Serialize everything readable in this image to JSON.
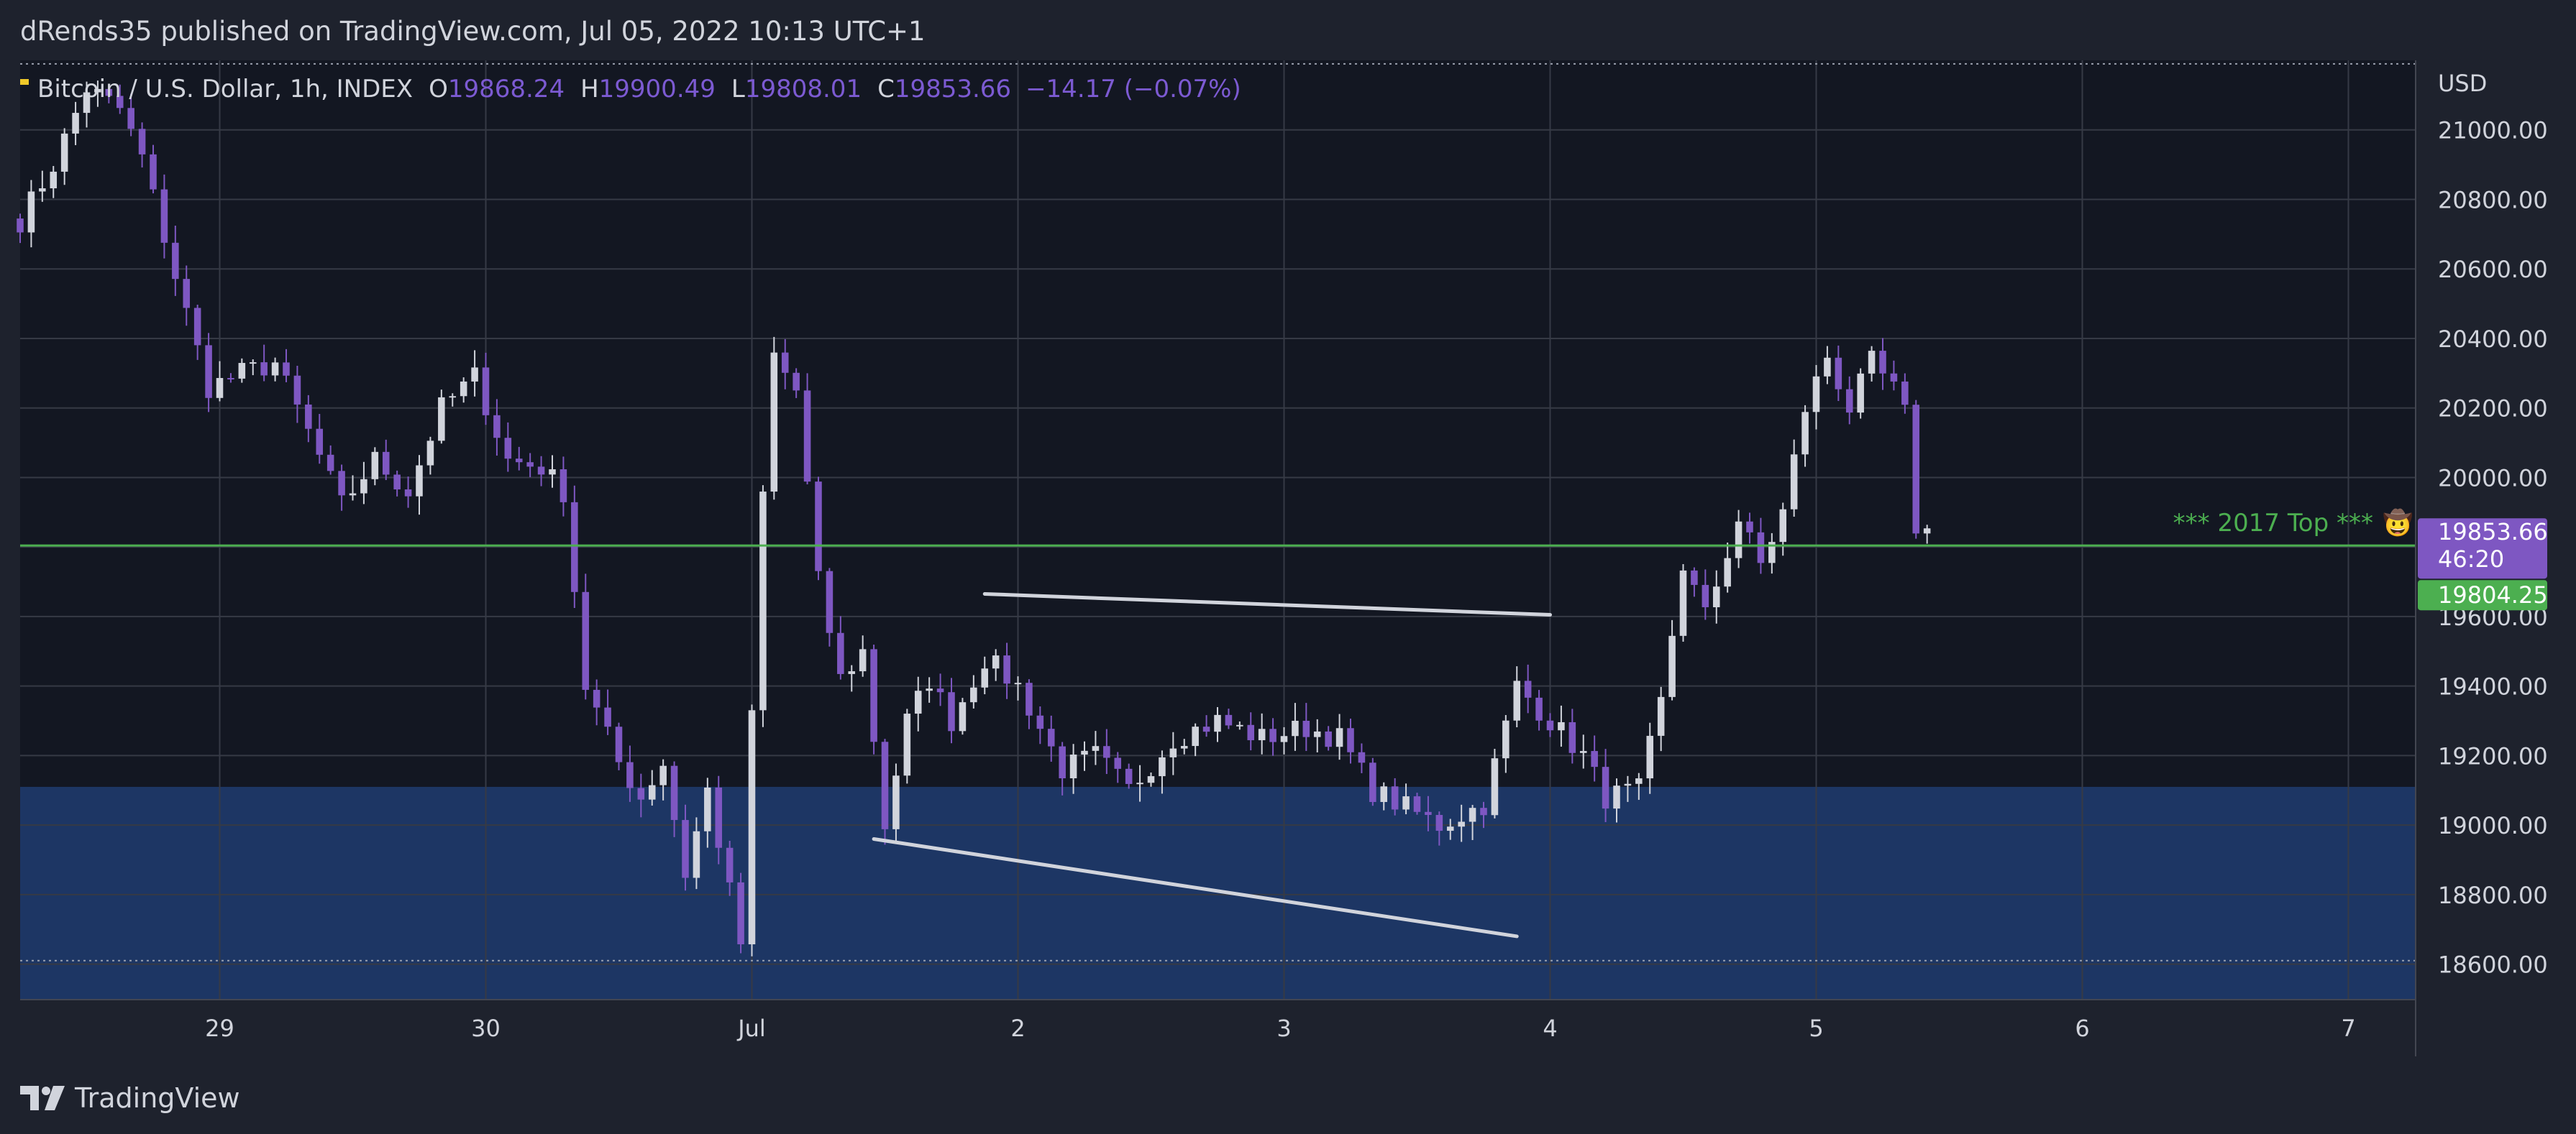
{
  "header": {
    "publish_line": "dRends35 published on TradingView.com, Jul 05, 2022 10:13 UTC+1"
  },
  "legend": {
    "title": "Bitcoin / U.S. Dollar, 1h, INDEX",
    "open_label": "O",
    "open": "19868.24",
    "high_label": "H",
    "high": "19900.49",
    "low_label": "L",
    "low": "19808.01",
    "close_label": "C",
    "close": "19853.66",
    "change": "−14.17 (−0.07%)"
  },
  "footer": {
    "brand": "TradingView"
  },
  "colors": {
    "background": "#131722",
    "frame": "#1e222d",
    "grid": "#363a45",
    "up_candle": "#d1d4dc",
    "down_candle": "#7e57c2",
    "zone": "#1f3a6b",
    "support_line": "#4caf50",
    "price_label": "#7e57c2",
    "level_label": "#4caf50",
    "trendline": "#d1d4dc"
  },
  "chart_data": {
    "type": "candlestick",
    "title": "Bitcoin / U.S. Dollar, 1h, INDEX",
    "currency": "USD",
    "timeframe": "1h",
    "y_range": [
      18500,
      21200
    ],
    "y_ticks": [
      "18600.00",
      "18800.00",
      "19000.00",
      "19200.00",
      "19400.00",
      "19600.00",
      "19800.00",
      "20000.00",
      "20200.00",
      "20400.00",
      "20600.00",
      "20800.00",
      "21000.00"
    ],
    "x_range": [
      "2022-06-28 06:00",
      "2022-07-07 06:00"
    ],
    "x_ticks": [
      {
        "label": "29",
        "time": "2022-06-29 00:00"
      },
      {
        "label": "30",
        "time": "2022-06-30 00:00"
      },
      {
        "label": "Jul",
        "time": "2022-07-01 00:00"
      },
      {
        "label": "2",
        "time": "2022-07-02 00:00"
      },
      {
        "label": "3",
        "time": "2022-07-03 00:00"
      },
      {
        "label": "4",
        "time": "2022-07-04 00:00"
      },
      {
        "label": "5",
        "time": "2022-07-05 00:00"
      },
      {
        "label": "6",
        "time": "2022-07-06 00:00"
      },
      {
        "label": "7",
        "time": "2022-07-07 00:00"
      }
    ],
    "last_price": {
      "value": 19853.66,
      "label": "19853.66",
      "countdown": "46:20"
    },
    "horizontal_level": {
      "value": 19804.25,
      "label": "19804.25",
      "annotation": "*** 2017 Top ***"
    },
    "demand_zone": {
      "from": 18500,
      "to": 19110
    },
    "dotted_levels": [
      21190,
      18610
    ],
    "trendlines": [
      {
        "start": {
          "time": "2022-07-01 21:00",
          "price": 19665
        },
        "end": {
          "time": "2022-07-04 00:00",
          "price": 19605
        }
      },
      {
        "start": {
          "time": "2022-07-01 11:00",
          "price": 18960
        },
        "end": {
          "time": "2022-07-03 21:00",
          "price": 18680
        }
      }
    ],
    "waypoints": [
      [
        "2022-06-28 06:00",
        20740
      ],
      [
        "2022-06-28 09:00",
        20900
      ],
      [
        "2022-06-28 12:00",
        21120
      ],
      [
        "2022-06-28 15:00",
        21060
      ],
      [
        "2022-06-28 17:00",
        20920
      ],
      [
        "2022-06-28 20:00",
        20580
      ],
      [
        "2022-06-28 23:00",
        20260
      ],
      [
        "2022-06-29 02:00",
        20300
      ],
      [
        "2022-06-29 05:00",
        20330
      ],
      [
        "2022-06-29 08:00",
        20130
      ],
      [
        "2022-06-29 11:00",
        19920
      ],
      [
        "2022-06-29 14:00",
        20050
      ],
      [
        "2022-06-29 17:00",
        19960
      ],
      [
        "2022-06-29 20:00",
        20200
      ],
      [
        "2022-06-29 23:00",
        20290
      ],
      [
        "2022-06-30 02:00",
        20050
      ],
      [
        "2022-06-30 05:00",
        20030
      ],
      [
        "2022-06-30 07:00",
        19960
      ],
      [
        "2022-06-30 09:00",
        19400
      ],
      [
        "2022-06-30 12:00",
        19180
      ],
      [
        "2022-06-30 14:00",
        19080
      ],
      [
        "2022-06-30 16:00",
        19180
      ],
      [
        "2022-06-30 18:00",
        18860
      ],
      [
        "2022-06-30 20:00",
        19100
      ],
      [
        "2022-06-30 23:00",
        18660
      ],
      [
        "2022-07-01 01:00",
        19950
      ],
      [
        "2022-07-01 02:00",
        20350
      ],
      [
        "2022-07-01 04:00",
        20250
      ],
      [
        "2022-07-01 06:00",
        19700
      ],
      [
        "2022-07-01 08:00",
        19420
      ],
      [
        "2022-07-01 10:00",
        19500
      ],
      [
        "2022-07-01 12:00",
        19000
      ],
      [
        "2022-07-01 14:00",
        19300
      ],
      [
        "2022-07-01 16:00",
        19420
      ],
      [
        "2022-07-01 18:00",
        19300
      ],
      [
        "2022-07-01 21:00",
        19480
      ],
      [
        "2022-07-02 00:00",
        19400
      ],
      [
        "2022-07-02 04:00",
        19160
      ],
      [
        "2022-07-02 07:00",
        19200
      ],
      [
        "2022-07-02 10:00",
        19100
      ],
      [
        "2022-07-02 14:00",
        19250
      ],
      [
        "2022-07-02 18:00",
        19300
      ],
      [
        "2022-07-02 22:00",
        19250
      ],
      [
        "2022-07-03 02:00",
        19280
      ],
      [
        "2022-07-03 05:00",
        19250
      ],
      [
        "2022-07-03 08:00",
        19100
      ],
      [
        "2022-07-03 11:00",
        19050
      ],
      [
        "2022-07-03 14:00",
        19000
      ],
      [
        "2022-07-03 18:00",
        19060
      ],
      [
        "2022-07-03 21:00",
        19400
      ],
      [
        "2022-07-04 00:00",
        19300
      ],
      [
        "2022-07-04 03:00",
        19200
      ],
      [
        "2022-07-04 05:00",
        19080
      ],
      [
        "2022-07-04 08:00",
        19100
      ],
      [
        "2022-07-04 10:00",
        19350
      ],
      [
        "2022-07-04 12:00",
        19750
      ],
      [
        "2022-07-04 14:00",
        19600
      ],
      [
        "2022-07-04 17:00",
        19880
      ],
      [
        "2022-07-04 19:00",
        19750
      ],
      [
        "2022-07-04 21:00",
        19900
      ],
      [
        "2022-07-04 23:00",
        20200
      ],
      [
        "2022-07-05 01:00",
        20350
      ],
      [
        "2022-07-05 03:00",
        20200
      ],
      [
        "2022-07-05 05:00",
        20330
      ],
      [
        "2022-07-05 07:00",
        20250
      ],
      [
        "2022-07-05 08:00",
        20180
      ],
      [
        "2022-07-05 09:00",
        19860
      ],
      [
        "2022-07-05 10:00",
        19853.66
      ]
    ]
  }
}
